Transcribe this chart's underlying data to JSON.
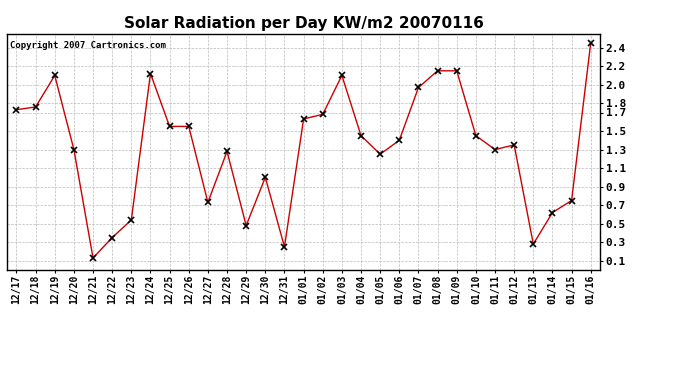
{
  "title": "Solar Radiation per Day KW/m2 20070116",
  "copyright_text": "Copyright 2007 Cartronics.com",
  "labels": [
    "12/17",
    "12/18",
    "12/19",
    "12/20",
    "12/21",
    "12/22",
    "12/23",
    "12/24",
    "12/25",
    "12/26",
    "12/27",
    "12/28",
    "12/29",
    "12/30",
    "12/31",
    "01/01",
    "01/02",
    "01/03",
    "01/04",
    "01/05",
    "01/06",
    "01/07",
    "01/08",
    "01/09",
    "01/10",
    "01/11",
    "01/12",
    "01/13",
    "01/14",
    "01/15",
    "01/16"
  ],
  "values": [
    1.73,
    1.76,
    2.1,
    1.3,
    0.13,
    0.35,
    0.54,
    2.12,
    1.55,
    1.55,
    0.73,
    1.28,
    0.48,
    1.0,
    0.25,
    1.63,
    1.68,
    2.1,
    1.45,
    1.25,
    1.4,
    1.97,
    2.15,
    2.15,
    1.45,
    1.3,
    1.35,
    0.28,
    0.62,
    0.75,
    2.45
  ],
  "line_color": "#cc0000",
  "marker_color": "#000000",
  "background_color": "#ffffff",
  "grid_color": "#bbbbbb",
  "yticks": [
    0.1,
    0.3,
    0.5,
    0.7,
    0.9,
    1.1,
    1.3,
    1.5,
    1.7,
    1.8,
    2.0,
    2.2,
    2.4
  ],
  "ytick_labels": [
    "0.1",
    "0.3",
    "0.5",
    "0.7",
    "0.9",
    "1.1",
    "1.3",
    "1.5",
    "1.7",
    "1.8",
    "2.0",
    "2.2",
    "2.4"
  ],
  "title_fontsize": 11,
  "tick_fontsize": 7,
  "copyright_fontsize": 6.5
}
